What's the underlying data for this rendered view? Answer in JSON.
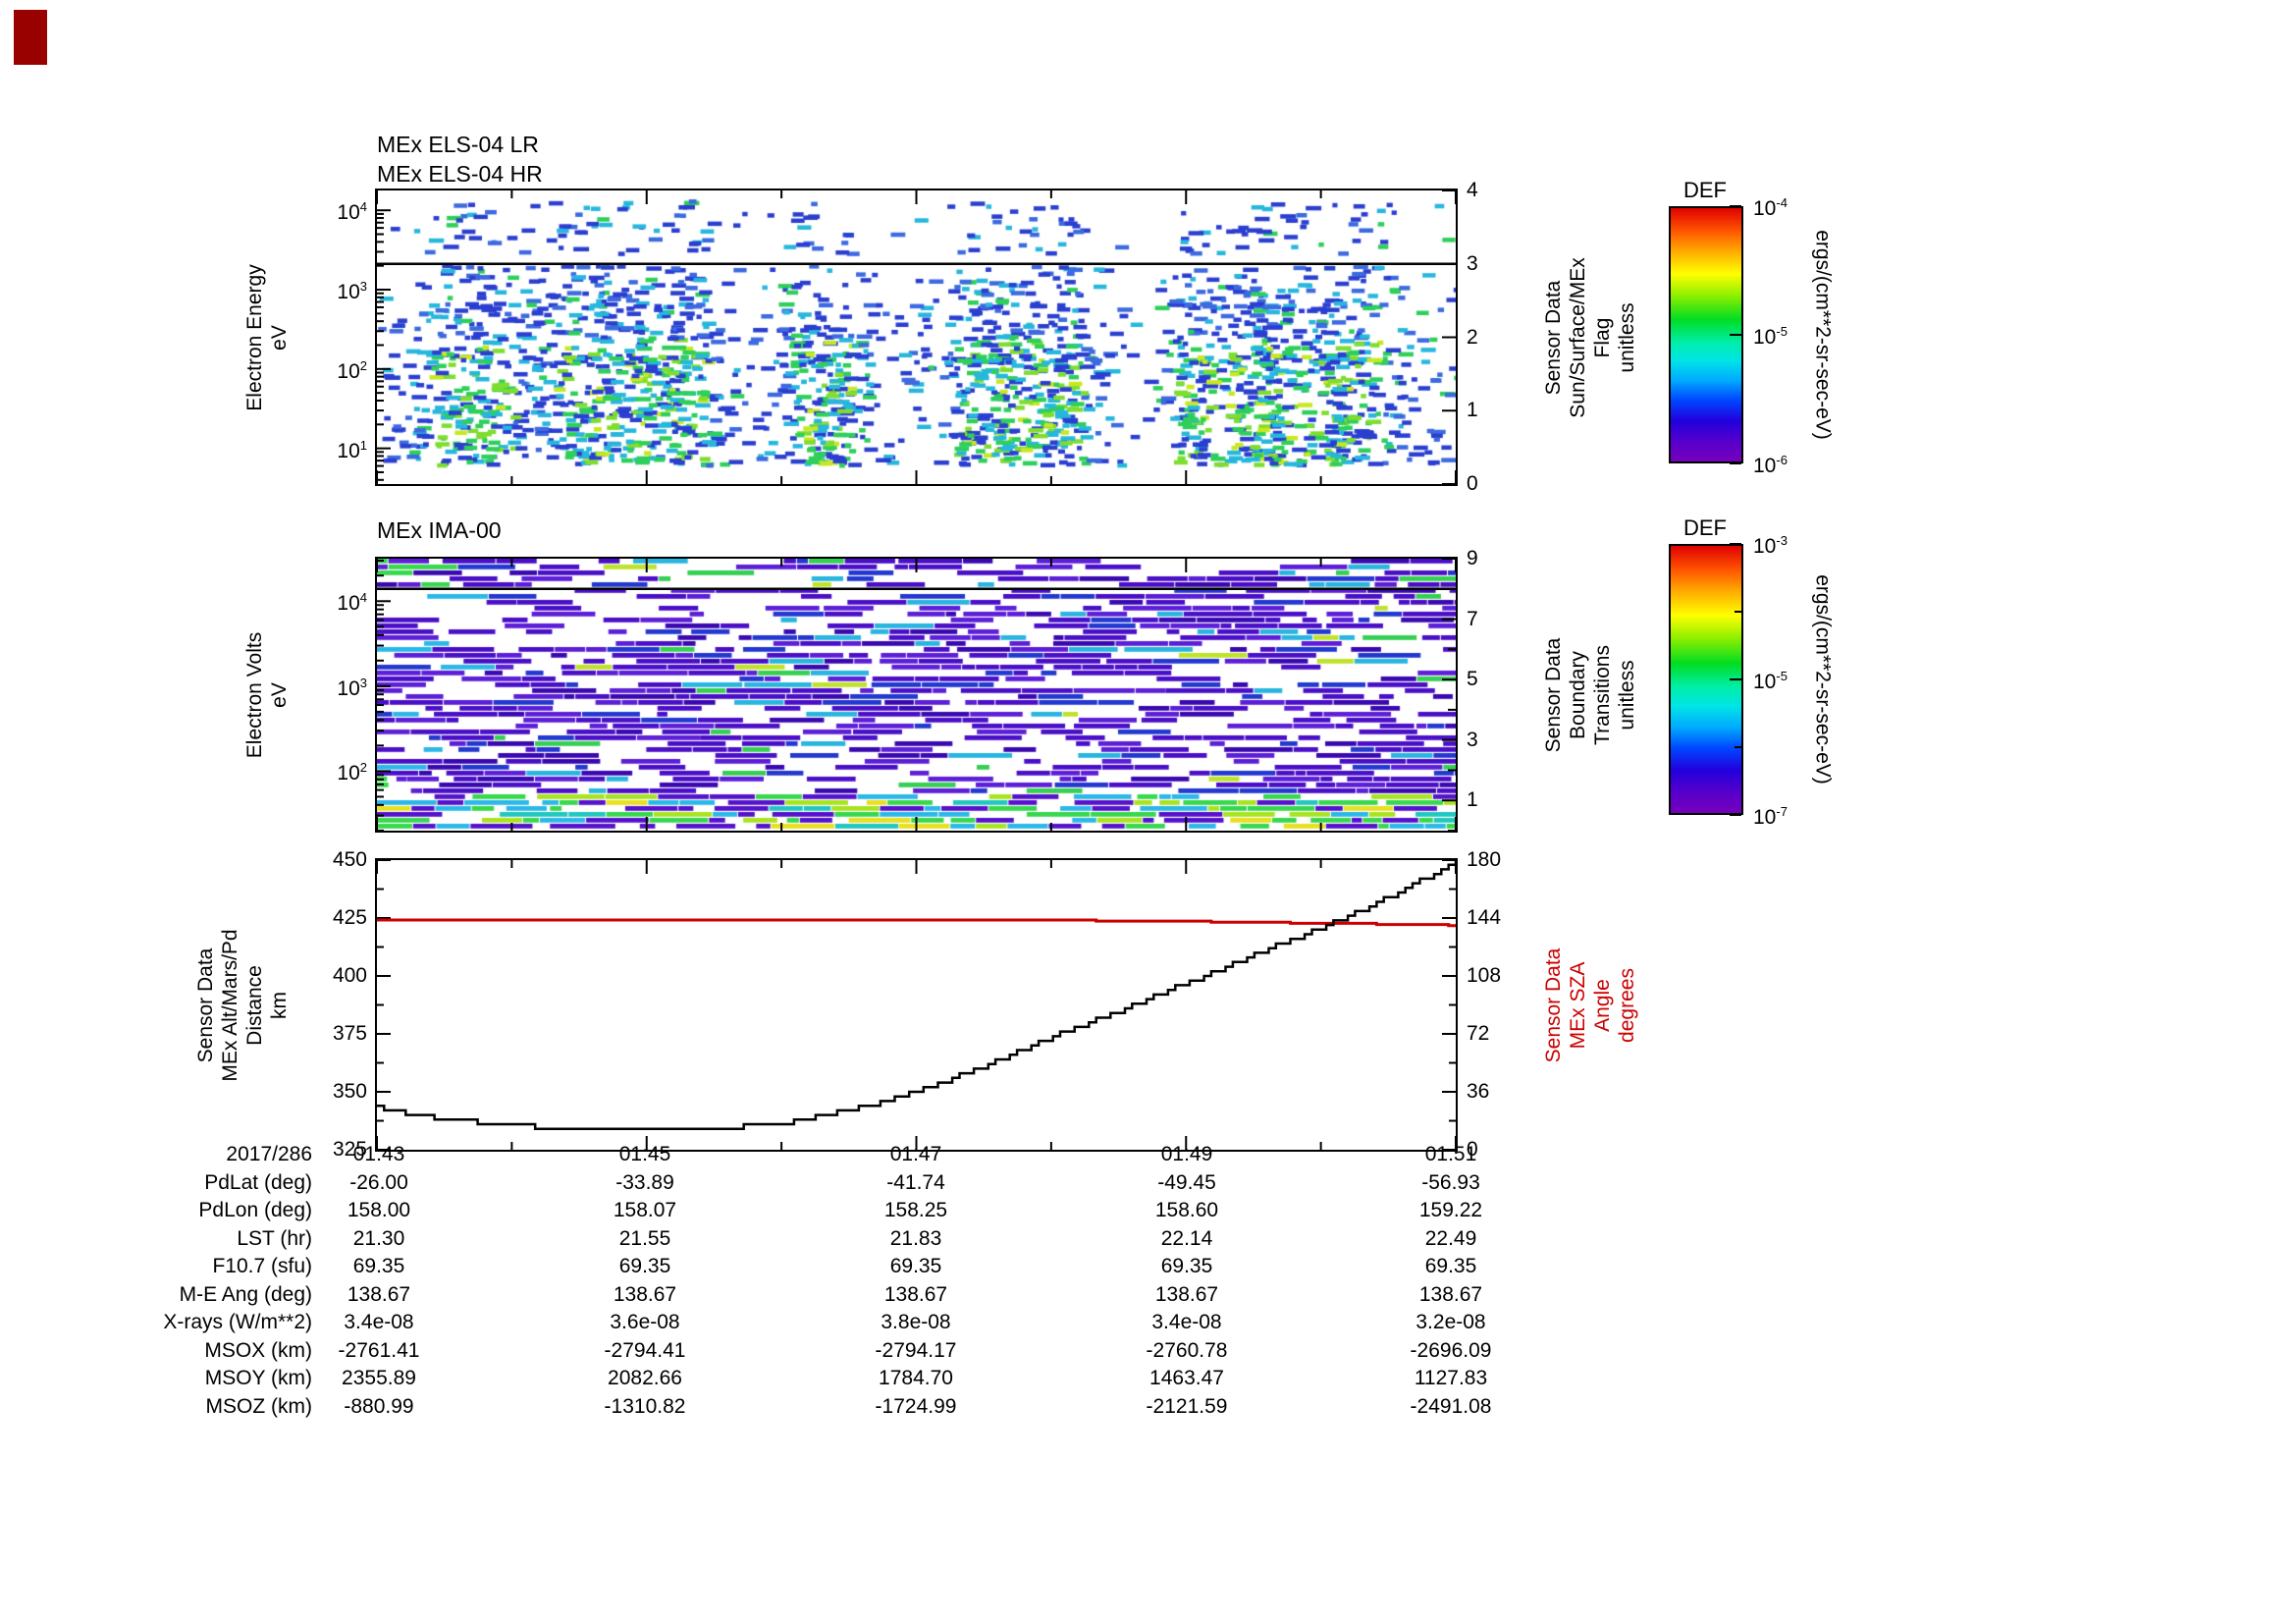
{
  "page": {
    "background": "#ffffff"
  },
  "x_axis": {
    "tick_labels": [
      "01:43",
      "01:45",
      "01:47",
      "01:49",
      "01:51"
    ],
    "span_minutes": 8
  },
  "chart_data": [
    {
      "id": "els",
      "type": "heatmap",
      "titles": [
        "MEx ELS-04 LR",
        "MEx ELS-04 HR"
      ],
      "ylabel_lines": [
        "Electron Energy",
        "eV"
      ],
      "y_scale": "log",
      "y_tick_exponents": [
        1,
        2,
        3,
        4
      ],
      "y_log_range": [
        0.55,
        4.25
      ],
      "right_axis": {
        "label_lines": [
          "Sensor Data",
          "Sun/Surface/MEx",
          "Flag",
          "unitless"
        ],
        "ticks": [
          0,
          1,
          2,
          3,
          4
        ],
        "minor_ticks": [],
        "range": [
          0,
          4
        ]
      },
      "overlay_line_value": 3,
      "palette_note": "sparse scattered blue/cyan/green flux dashes, clustered at low energies"
    },
    {
      "id": "ima",
      "type": "heatmap",
      "titles": [
        "MEx IMA-00"
      ],
      "ylabel_lines": [
        "Electron Volts",
        "eV"
      ],
      "y_scale": "log",
      "y_tick_exponents": [
        2,
        3,
        4
      ],
      "y_log_range": [
        1.3,
        4.5
      ],
      "right_axis": {
        "label_lines": [
          "Sensor Data",
          "Boundary",
          "Transitions",
          "unitless"
        ],
        "ticks": [
          1,
          3,
          5,
          7,
          9
        ],
        "minor_ticks": [
          0,
          2,
          4,
          6,
          8
        ],
        "range": [
          0,
          9
        ]
      },
      "overlay_line_value": 8,
      "palette_note": "dense purple/indigo ion bars with bright cyan-green band at lowest energies"
    },
    {
      "id": "altitude",
      "type": "line",
      "ylabel_lines": [
        "Sensor Data",
        "MEx Alt/Mars/Pd",
        "Distance",
        "km"
      ],
      "y_range": [
        325,
        450
      ],
      "y_ticks": [
        325,
        350,
        375,
        400,
        425,
        450
      ],
      "right_axis": {
        "label_lines": [
          "Sensor Data",
          "MEx SZA",
          "Angle",
          "degrees"
        ],
        "ticks": [
          0,
          36,
          72,
          108,
          144,
          180
        ],
        "minor_step": 18,
        "range": [
          0,
          180
        ],
        "color": "#cc0000"
      },
      "series": [
        {
          "name": "MEx altitude (km)",
          "color": "#000000",
          "axis": "left",
          "x_minutes": [
            0,
            0.5,
            1,
            1.5,
            2,
            2.5,
            3,
            3.5,
            4,
            4.5,
            5,
            5.5,
            6,
            6.5,
            7,
            7.5,
            8
          ],
          "values": [
            343,
            338,
            335.5,
            334,
            333.5,
            334,
            336.5,
            342,
            350,
            361,
            374,
            385,
            397,
            409,
            421,
            434,
            449
          ]
        },
        {
          "name": "MEx SZA (deg)",
          "color": "#cc0000",
          "axis": "right",
          "x_minutes": [
            0,
            5,
            5.8,
            6.3,
            6.8,
            7.3,
            7.8,
            8
          ],
          "values": [
            142.8,
            142.6,
            142.2,
            141.6,
            141.0,
            140.4,
            140.0,
            139.5
          ]
        }
      ]
    }
  ],
  "colorbars": [
    {
      "title": "DEF",
      "tick_exponents": [
        -4,
        -5,
        -6
      ],
      "unit": "ergs/(cm**2-sr-sec-eV)"
    },
    {
      "title": "DEF",
      "tick_exponents": [
        -3,
        -5,
        -7
      ],
      "unit": "ergs/(cm**2-sr-sec-eV)"
    }
  ],
  "ephemeris": {
    "row_labels": [
      "2017/286",
      "PdLat (deg)",
      "PdLon (deg)",
      "LST (hr)",
      "F10.7 (sfu)",
      "M-E Ang (deg)",
      "X-rays (W/m**2)",
      "MSOX (km)",
      "MSOY (km)",
      "MSOZ (km)"
    ],
    "rows": [
      [
        "01:43",
        "01:45",
        "01:47",
        "01:49",
        "01:51"
      ],
      [
        "-26.00",
        "-33.89",
        "-41.74",
        "-49.45",
        "-56.93"
      ],
      [
        "158.00",
        "158.07",
        "158.25",
        "158.60",
        "159.22"
      ],
      [
        "21.30",
        "21.55",
        "21.83",
        "22.14",
        "22.49"
      ],
      [
        "69.35",
        "69.35",
        "69.35",
        "69.35",
        "69.35"
      ],
      [
        "138.67",
        "138.67",
        "138.67",
        "138.67",
        "138.67"
      ],
      [
        "3.4e-08",
        "3.6e-08",
        "3.8e-08",
        "3.4e-08",
        "3.2e-08"
      ],
      [
        "-2761.41",
        "-2794.41",
        "-2794.17",
        "-2760.78",
        "-2696.09"
      ],
      [
        "2355.89",
        "2082.66",
        "1784.70",
        "1463.47",
        "1127.83"
      ],
      [
        "-880.99",
        "-1310.82",
        "-1724.99",
        "-2121.59",
        "-2491.08"
      ]
    ]
  }
}
